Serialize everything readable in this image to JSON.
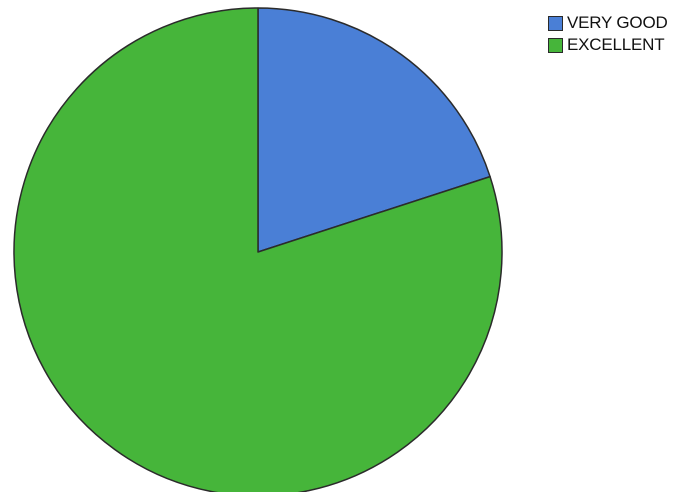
{
  "chart_data": {
    "type": "pie",
    "title": "",
    "categories": [
      "VERY GOOD",
      "EXCELLENT"
    ],
    "values": [
      20,
      80
    ],
    "colors": [
      "#4a7fd6",
      "#46b53a"
    ],
    "start_angle": "12 o'clock",
    "direction": "clockwise",
    "legend": {
      "placement": "top-right",
      "items": [
        {
          "label": "VERY GOOD",
          "color": "#4a7fd6"
        },
        {
          "label": "EXCELLENT",
          "color": "#46b53a"
        }
      ]
    }
  }
}
